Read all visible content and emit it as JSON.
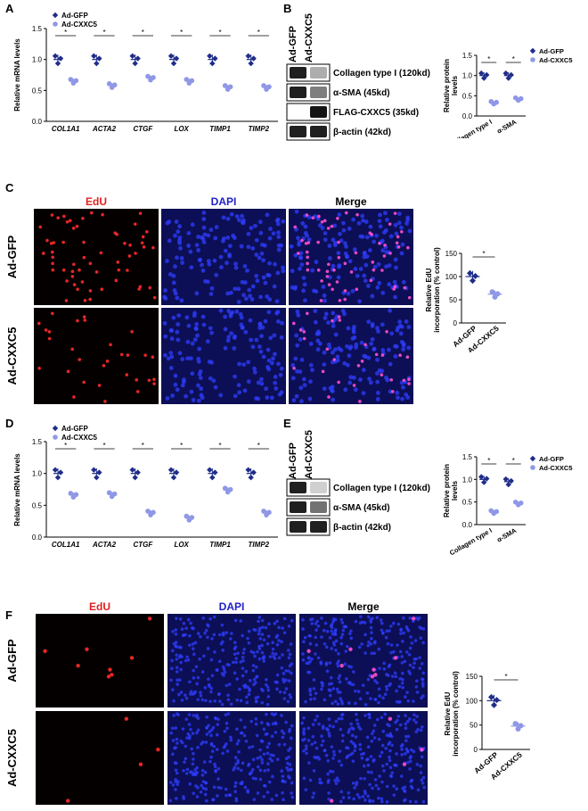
{
  "panels": {
    "A": "A",
    "B": "B",
    "C": "C",
    "D": "D",
    "E": "E",
    "F": "F"
  },
  "colors": {
    "gfp": "#1f2d8a",
    "cxxc5": "#8f97e6",
    "star": "#000000",
    "edu_dot": "#ff2a2a",
    "dapi_bg": "#0c0f55",
    "dapi_dot": "#2f3dff",
    "blot_band": "#141414"
  },
  "legend": {
    "gfp": "Ad-GFP",
    "cxxc5": "Ad-CXXC5"
  },
  "blot_labels": {
    "collagen": "Collagen type I (120kd)",
    "sma": "α-SMA (45kd)",
    "flag": "FLAG-CXXC5 (35kd)",
    "actin": "β-actin (42kd)"
  },
  "blot_columns": {
    "gfp": "Ad-GFP",
    "cxxc5": "Ad-CXXC5"
  },
  "micro_headers": {
    "edu": "EdU",
    "dapi": "DAPI",
    "merge": "Merge"
  },
  "row_labels": {
    "gfp": "Ad-GFP",
    "cxxc5": "Ad-CXXC5"
  },
  "chart_data": [
    {
      "id": "A",
      "type": "scatter",
      "ylabel": "Relative mRNA levels",
      "categories": [
        "COL1A1",
        "ACTA2",
        "CTGF",
        "LOX",
        "TIMP1",
        "TIMP2"
      ],
      "ylim": [
        0,
        1.5
      ],
      "yticks": [
        "0.0",
        "0.5",
        "1.0",
        "1.5"
      ],
      "significance": "*",
      "series": [
        {
          "name": "Ad-GFP",
          "values": [
            1.0,
            1.0,
            1.0,
            1.0,
            1.0,
            1.0
          ]
        },
        {
          "name": "Ad-CXXC5",
          "values": [
            0.65,
            0.58,
            0.7,
            0.65,
            0.55,
            0.55
          ]
        }
      ]
    },
    {
      "id": "B",
      "type": "scatter",
      "ylabel": "Relative protein levels",
      "categories": [
        "Collagen type I",
        "α-SMA"
      ],
      "ylim": [
        0,
        1.5
      ],
      "yticks": [
        "0.0",
        "0.5",
        "1.0",
        "1.5"
      ],
      "significance": "*",
      "series": [
        {
          "name": "Ad-GFP",
          "values": [
            1.0,
            1.0
          ]
        },
        {
          "name": "Ad-CXXC5",
          "values": [
            0.33,
            0.42
          ]
        }
      ]
    },
    {
      "id": "C",
      "type": "scatter",
      "ylabel": "Relative EdU incorporation (% control)",
      "categories": [
        "Ad-GFP",
        "Ad-CXXC5"
      ],
      "ylim": [
        0,
        150
      ],
      "yticks": [
        "0",
        "50",
        "100",
        "150"
      ],
      "significance": "*",
      "values": [
        100,
        62
      ]
    },
    {
      "id": "D",
      "type": "scatter",
      "ylabel": "Relative mRNA levels",
      "categories": [
        "COL1A1",
        "ACTA2",
        "CTGF",
        "LOX",
        "TIMP1",
        "TIMP2"
      ],
      "ylim": [
        0,
        1.5
      ],
      "yticks": [
        "0.0",
        "0.5",
        "1.0",
        "1.5"
      ],
      "significance": "*",
      "series": [
        {
          "name": "Ad-GFP",
          "values": [
            1.0,
            1.0,
            1.0,
            1.0,
            1.0,
            1.0
          ]
        },
        {
          "name": "Ad-CXXC5",
          "values": [
            0.66,
            0.67,
            0.38,
            0.3,
            0.74,
            0.38
          ]
        }
      ]
    },
    {
      "id": "E",
      "type": "scatter",
      "ylabel": "Relative protein levels",
      "categories": [
        "Collagen type I",
        "α-SMA"
      ],
      "ylim": [
        0,
        1.5
      ],
      "yticks": [
        "0.0",
        "0.5",
        "1.0",
        "1.5"
      ],
      "significance": "*",
      "series": [
        {
          "name": "Ad-GFP",
          "values": [
            1.0,
            0.95
          ]
        },
        {
          "name": "Ad-CXXC5",
          "values": [
            0.28,
            0.47
          ]
        }
      ]
    },
    {
      "id": "F",
      "type": "scatter",
      "ylabel": "Relative EdU incorporation (% control)",
      "categories": [
        "Ad-GFP",
        "Ad-CXXC5"
      ],
      "ylim": [
        0,
        150
      ],
      "yticks": [
        "0",
        "50",
        "100",
        "150"
      ],
      "significance": "*",
      "values": [
        100,
        48
      ]
    }
  ]
}
